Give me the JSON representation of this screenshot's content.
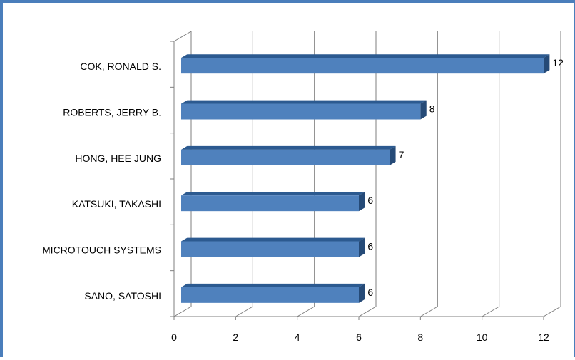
{
  "chart_data": {
    "type": "bar",
    "orientation": "horizontal",
    "style": "3d",
    "categories": [
      "COK, RONALD S.",
      "ROBERTS, JERRY B.",
      "HONG, HEE JUNG",
      "KATSUKI, TAKASHI",
      "MICROTOUCH SYSTEMS",
      "SANO, SATOSHI"
    ],
    "values": [
      12,
      8,
      7,
      6,
      6,
      6
    ],
    "data_labels": [
      "12",
      "8",
      "7",
      "6",
      "6",
      "6"
    ],
    "x_ticks": [
      "0",
      "2",
      "4",
      "6",
      "8",
      "10",
      "12"
    ],
    "xlim": [
      0,
      12
    ],
    "title": "",
    "xlabel": "",
    "ylabel": "",
    "grid": true,
    "legend": "none",
    "colors": {
      "bar_front": "#4f81bd",
      "bar_top": "#2c5a90",
      "bar_side": "#254a77",
      "grid": "#7f7f7f",
      "frame": "#4a7ebb"
    }
  }
}
